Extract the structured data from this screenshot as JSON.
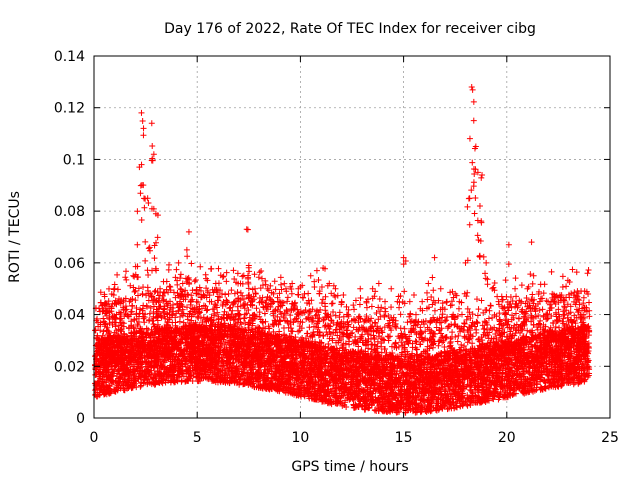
{
  "chart_data": {
    "type": "scatter",
    "title": "Day 176 of 2022, Rate Of TEC Index for receiver cibg",
    "xlabel": "GPS time / hours",
    "ylabel": "ROTI / TECUs",
    "xlim": [
      0,
      25
    ],
    "ylim": [
      0,
      0.14
    ],
    "xticks": [
      0,
      5,
      10,
      15,
      20,
      25
    ],
    "yticks": [
      0,
      0.02,
      0.04,
      0.06,
      0.08,
      0.1,
      0.12,
      0.14
    ],
    "xtick_labels": [
      "0",
      "5",
      "10",
      "15",
      "20",
      "25"
    ],
    "ytick_labels": [
      "0",
      "0.02",
      "0.04",
      "0.06",
      "0.08",
      "0.1",
      "0.12",
      "0.14"
    ],
    "grid": true,
    "marker": "+",
    "series": [
      {
        "name": "ROTI",
        "color": "#ff0000",
        "description_points": "dense band of ROTI samples between 0 and 24 h; most values 0.005–0.04 TECU/min",
        "x": [
          0.2,
          0.5,
          0.8,
          1.0,
          1.3,
          1.6,
          1.9,
          2.1,
          2.2,
          2.3,
          2.4,
          2.6,
          2.7,
          2.8,
          2.9,
          3.0,
          3.2,
          3.5,
          3.8,
          4.1,
          4.3,
          4.5,
          4.6,
          4.8,
          5.0,
          5.3,
          5.6,
          5.9,
          6.2,
          6.5,
          6.8,
          7.1,
          7.4,
          7.5,
          7.8,
          8.1,
          8.4,
          8.7,
          9.0,
          9.3,
          9.6,
          9.9,
          10.2,
          10.5,
          10.8,
          11.1,
          11.4,
          11.7,
          12.0,
          12.3,
          12.6,
          12.9,
          13.2,
          13.5,
          13.8,
          14.1,
          14.4,
          14.7,
          15.0,
          15.3,
          15.6,
          15.9,
          16.2,
          16.5,
          16.8,
          17.1,
          17.4,
          17.7,
          18.0,
          18.2,
          18.3,
          18.4,
          18.5,
          18.6,
          18.7,
          18.8,
          19.0,
          19.3,
          19.6,
          19.9,
          20.1,
          20.4,
          20.7,
          21.0,
          21.2,
          21.3,
          21.6,
          21.9,
          22.2,
          22.5,
          22.8,
          23.1,
          23.4,
          23.7,
          23.9
        ],
        "y": [
          0.018,
          0.025,
          0.03,
          0.05,
          0.045,
          0.04,
          0.055,
          0.067,
          0.097,
          0.118,
          0.112,
          0.085,
          0.066,
          0.114,
          0.102,
          0.079,
          0.05,
          0.045,
          0.04,
          0.06,
          0.052,
          0.065,
          0.072,
          0.04,
          0.03,
          0.035,
          0.045,
          0.052,
          0.048,
          0.04,
          0.045,
          0.052,
          0.073,
          0.059,
          0.05,
          0.045,
          0.05,
          0.048,
          0.045,
          0.05,
          0.052,
          0.05,
          0.048,
          0.055,
          0.057,
          0.058,
          0.052,
          0.05,
          0.045,
          0.04,
          0.042,
          0.05,
          0.045,
          0.05,
          0.052,
          0.045,
          0.05,
          0.045,
          0.062,
          0.045,
          0.04,
          0.045,
          0.052,
          0.062,
          0.05,
          0.045,
          0.04,
          0.045,
          0.06,
          0.085,
          0.128,
          0.115,
          0.105,
          0.095,
          0.082,
          0.094,
          0.06,
          0.05,
          0.045,
          0.04,
          0.067,
          0.05,
          0.045,
          0.05,
          0.068,
          0.055,
          0.045,
          0.04,
          0.048,
          0.042,
          0.04,
          0.038,
          0.042,
          0.04,
          0.035
        ]
      }
    ]
  }
}
